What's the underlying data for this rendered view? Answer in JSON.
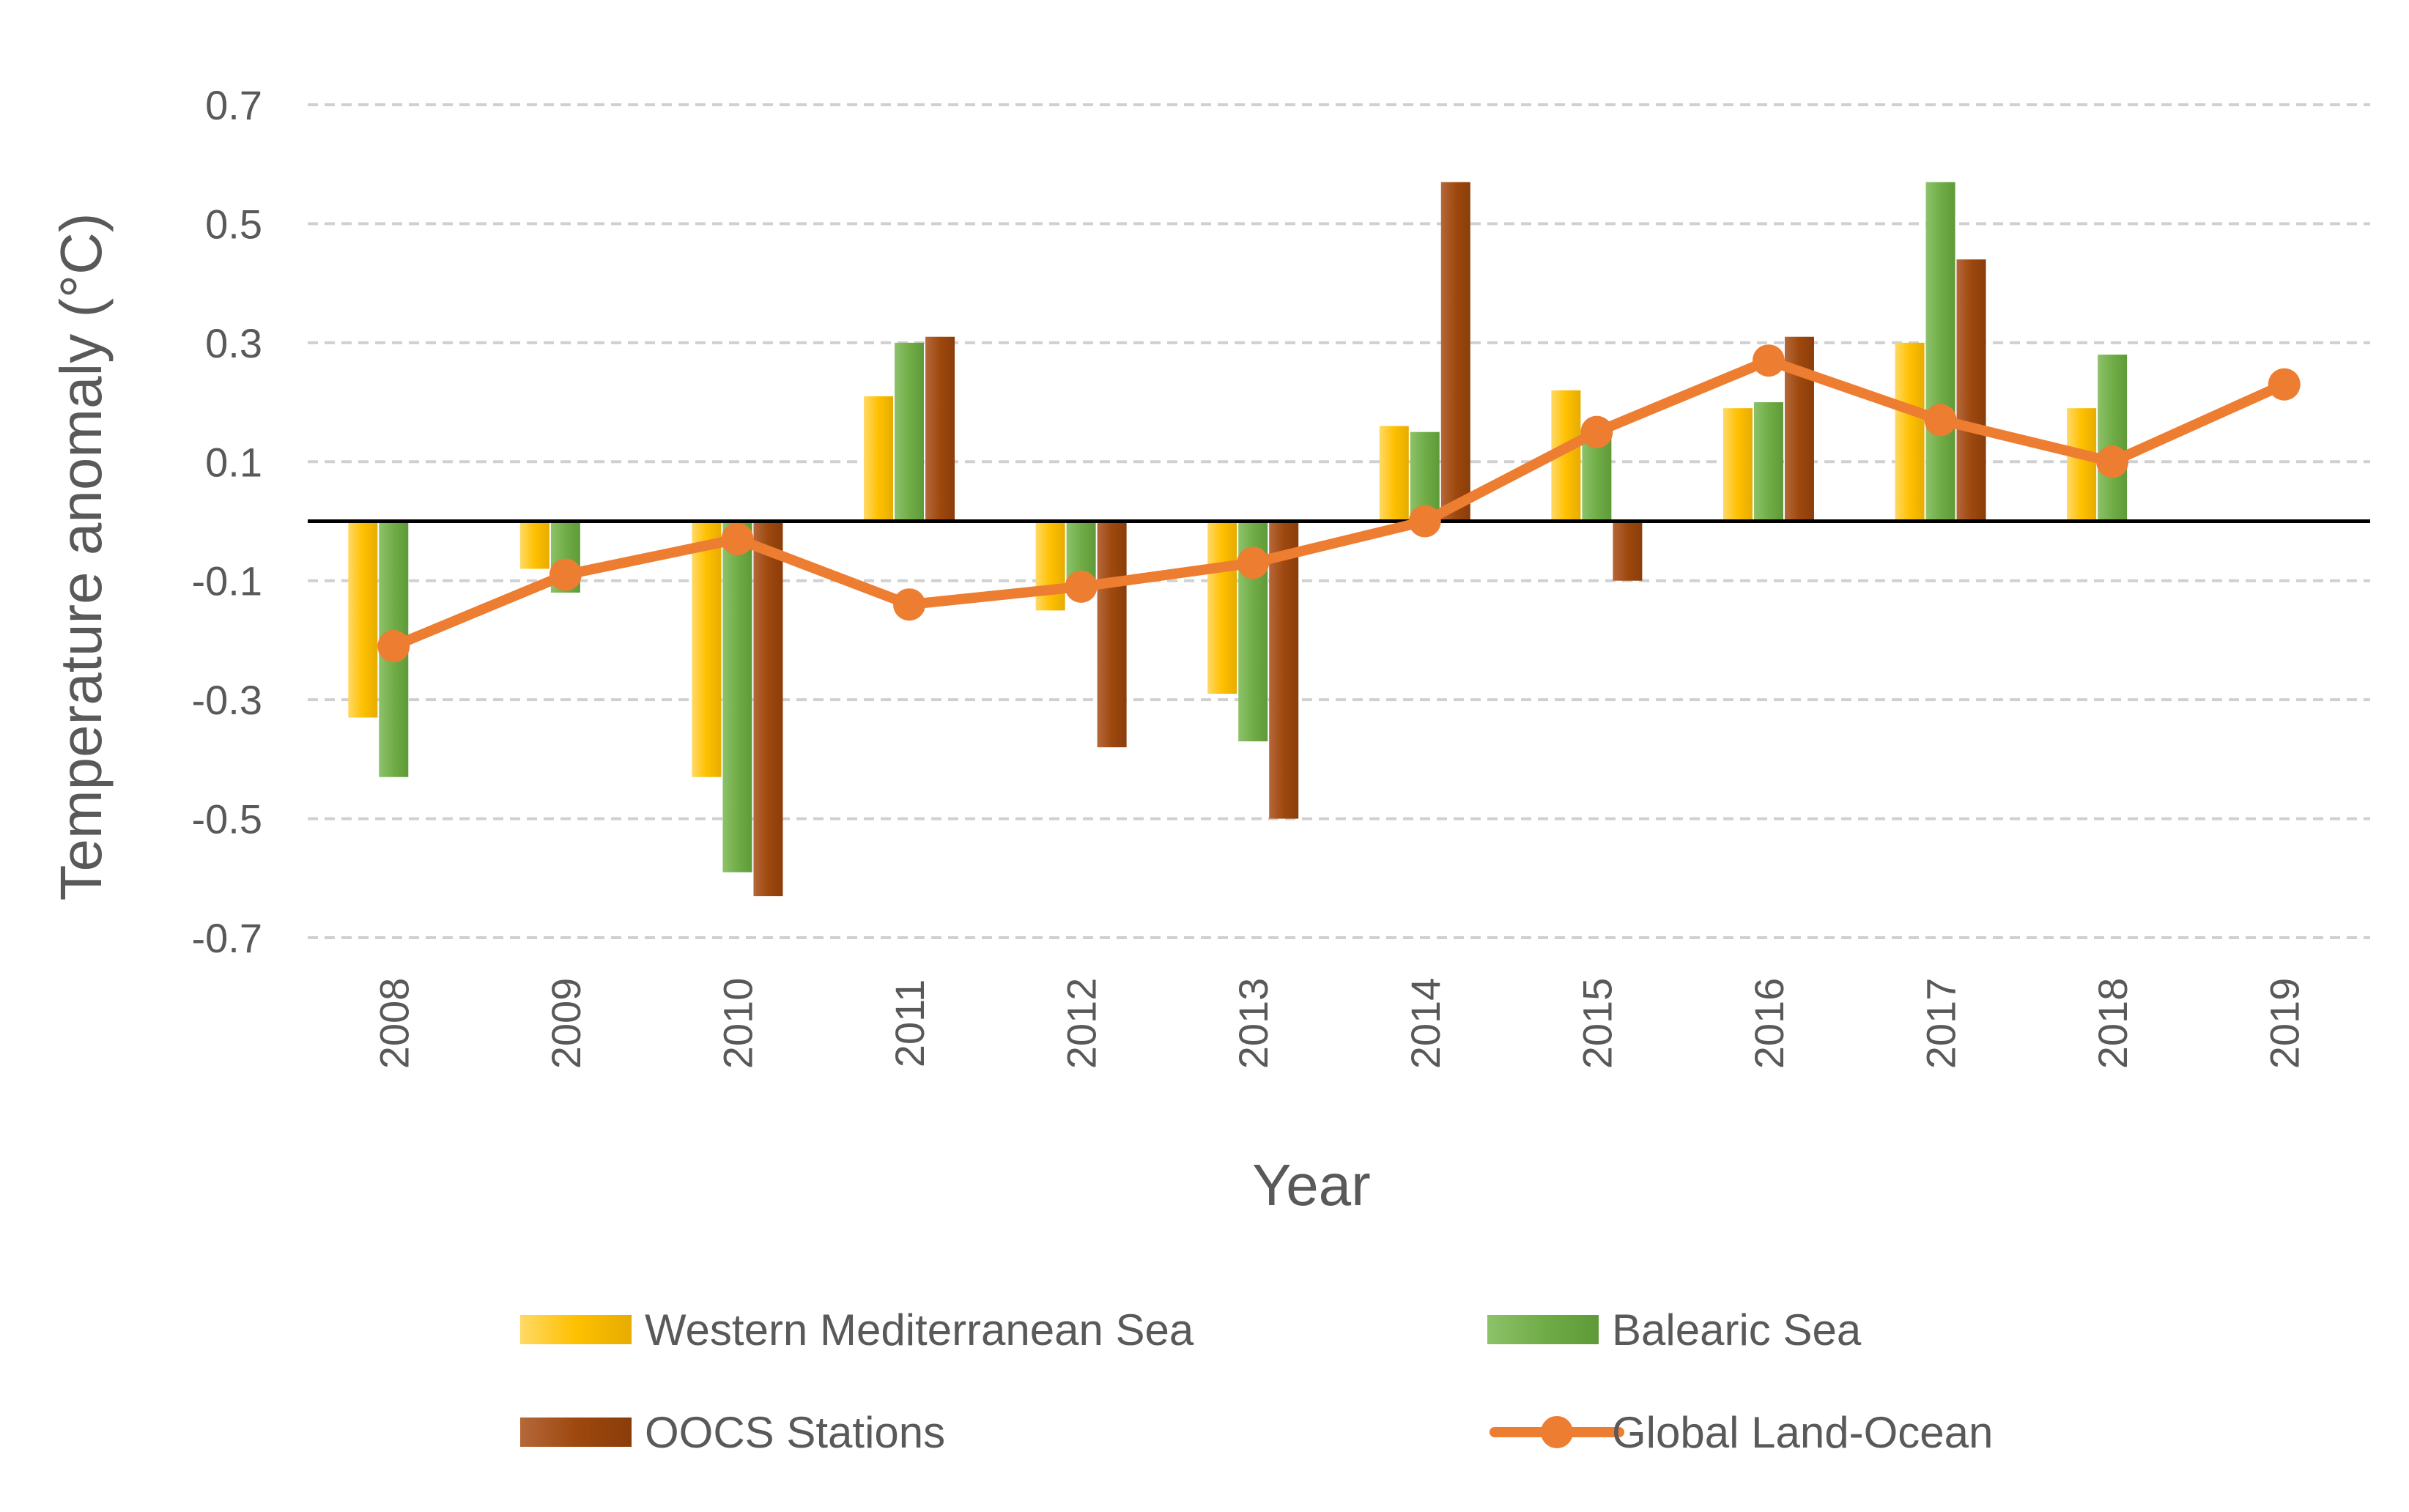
{
  "chart_data": {
    "type": "bar",
    "title": "",
    "xlabel": "Year",
    "ylabel": "Temperature anomaly (°C)",
    "ylim": [
      -0.7,
      0.7
    ],
    "yticks": [
      "0.7",
      "0.5",
      "0.3",
      "0.1",
      "-0.1",
      "-0.3",
      "-0.5",
      "-0.7"
    ],
    "grid": true,
    "legend_position": "bottom",
    "categories": [
      "2008",
      "2009",
      "2010",
      "2011",
      "2012",
      "2013",
      "2014",
      "2015",
      "2016",
      "2017",
      "2018",
      "2019"
    ],
    "series": [
      {
        "name": "Western Mediterranean Sea",
        "type": "bar",
        "color": "#FFC000",
        "values": [
          -0.33,
          -0.08,
          -0.43,
          0.21,
          -0.15,
          -0.29,
          0.16,
          0.22,
          0.19,
          0.3,
          0.19,
          null
        ]
      },
      {
        "name": "Balearic Sea",
        "type": "bar",
        "color": "#70AD47",
        "values": [
          -0.43,
          -0.12,
          -0.59,
          0.3,
          -0.11,
          -0.37,
          0.15,
          0.14,
          0.2,
          0.57,
          0.28,
          null
        ]
      },
      {
        "name": "OOCS Stations",
        "type": "bar",
        "color": "#9E480E",
        "values": [
          null,
          null,
          -0.63,
          0.31,
          -0.38,
          -0.5,
          0.57,
          -0.1,
          0.31,
          0.44,
          null,
          null
        ]
      },
      {
        "name": "Global Land-Ocean",
        "type": "line",
        "color": "#ED7D31",
        "values": [
          -0.21,
          -0.09,
          -0.03,
          -0.14,
          -0.11,
          -0.07,
          0.0,
          0.15,
          0.27,
          0.17,
          0.1,
          0.23
        ]
      }
    ]
  }
}
